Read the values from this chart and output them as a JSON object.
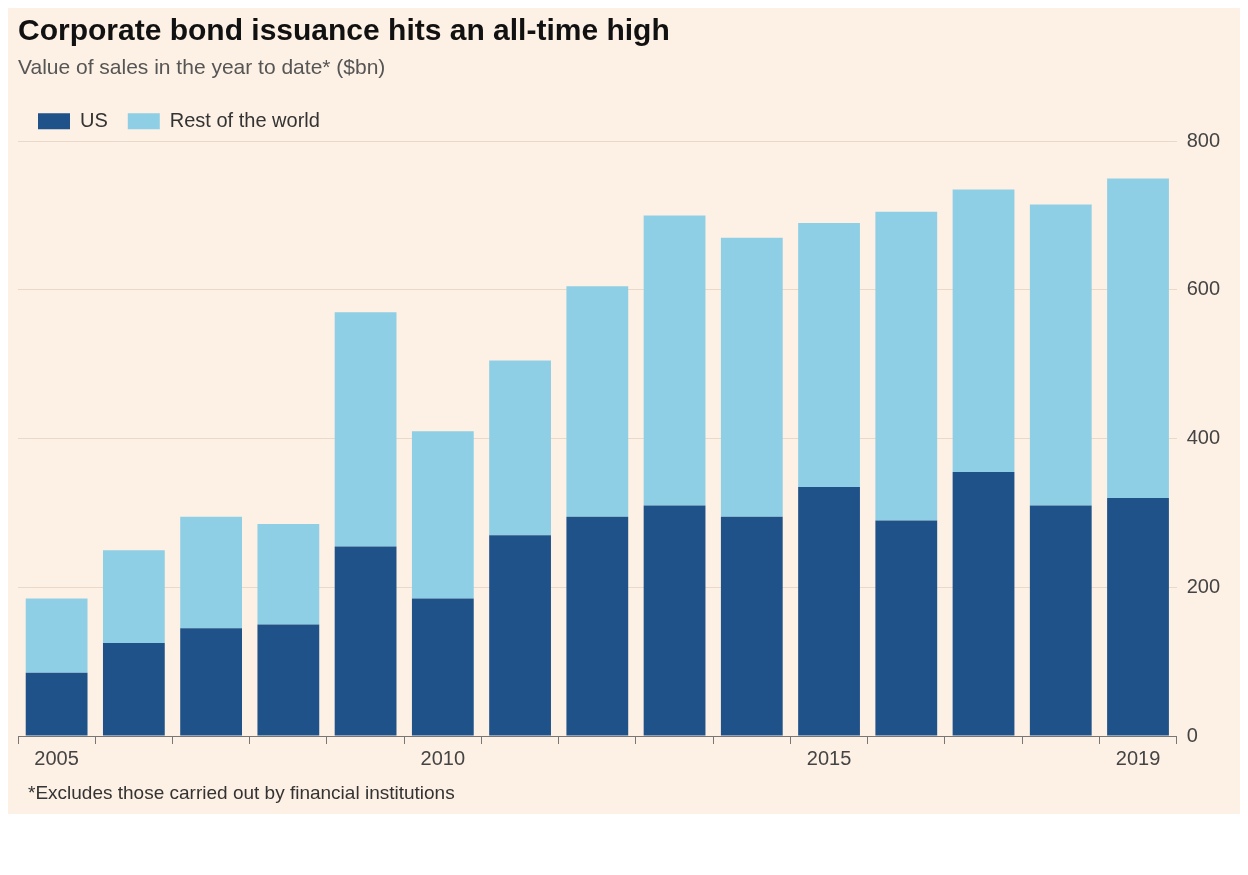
{
  "chart_data": {
    "type": "bar",
    "title": "Corporate bond issuance hits an all-time high",
    "subtitle": "Value of sales in the year to date* ($bn)",
    "categories": [
      "2005",
      null,
      null,
      null,
      null,
      "2010",
      null,
      null,
      null,
      null,
      "2015",
      null,
      null,
      null,
      "2019"
    ],
    "series": [
      {
        "name": "US",
        "color": "#1f5289",
        "values": [
          85,
          125,
          145,
          150,
          255,
          185,
          270,
          295,
          310,
          295,
          335,
          290,
          355,
          310,
          320
        ]
      },
      {
        "name": "Rest of the world",
        "color": "#8fcfe6",
        "values": [
          100,
          125,
          150,
          135,
          315,
          225,
          235,
          310,
          390,
          375,
          355,
          415,
          380,
          405,
          430
        ]
      }
    ],
    "stacked": true,
    "ylim": [
      0,
      800
    ],
    "yticks": [
      0,
      200,
      400,
      600,
      800
    ],
    "grid": "y",
    "legend": "top left",
    "annotations": [
      "*Excludes those carried out by financial institutions"
    ]
  }
}
